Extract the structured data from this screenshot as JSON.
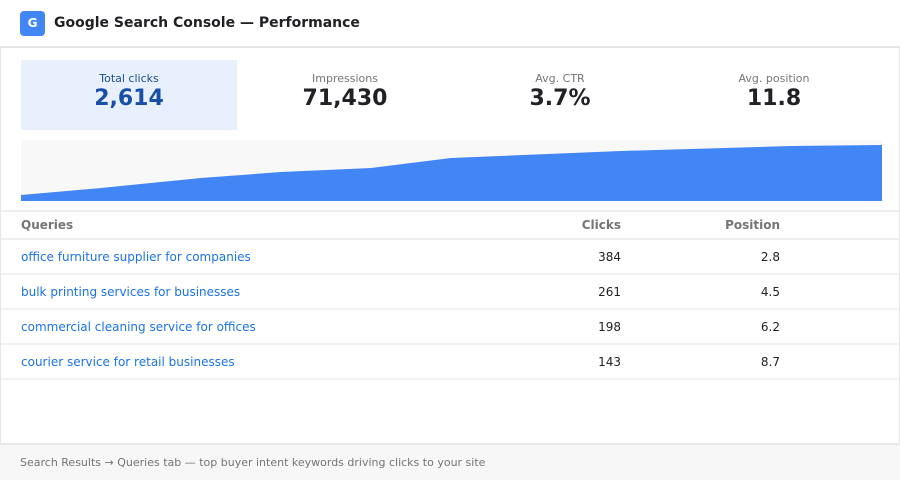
{
  "header": {
    "logo": "G",
    "title": "Google Search Console — Performance"
  },
  "metrics": [
    {
      "label": "Total clicks",
      "value": "2,614",
      "active": true
    },
    {
      "label": "Impressions",
      "value": "71,430"
    },
    {
      "label": "Avg. CTR",
      "value": "3.7%"
    },
    {
      "label": "Avg. position",
      "value": "11.8"
    }
  ],
  "chart": {
    "color": "#4285f4"
  },
  "table": {
    "headers": {
      "query": "Queries",
      "clicks": "Clicks",
      "position": "Position"
    },
    "rows": [
      {
        "query": "office furniture supplier for companies",
        "clicks": "384",
        "position": "2.8"
      },
      {
        "query": "bulk printing services for businesses",
        "clicks": "261",
        "position": "4.5"
      },
      {
        "query": "commercial cleaning service for offices",
        "clicks": "198",
        "position": "6.2"
      },
      {
        "query": "courier service for retail businesses",
        "clicks": "143",
        "position": "8.7"
      }
    ]
  },
  "footer": "Search Results → Queries tab — top buyer intent keywords driving clicks to your site"
}
